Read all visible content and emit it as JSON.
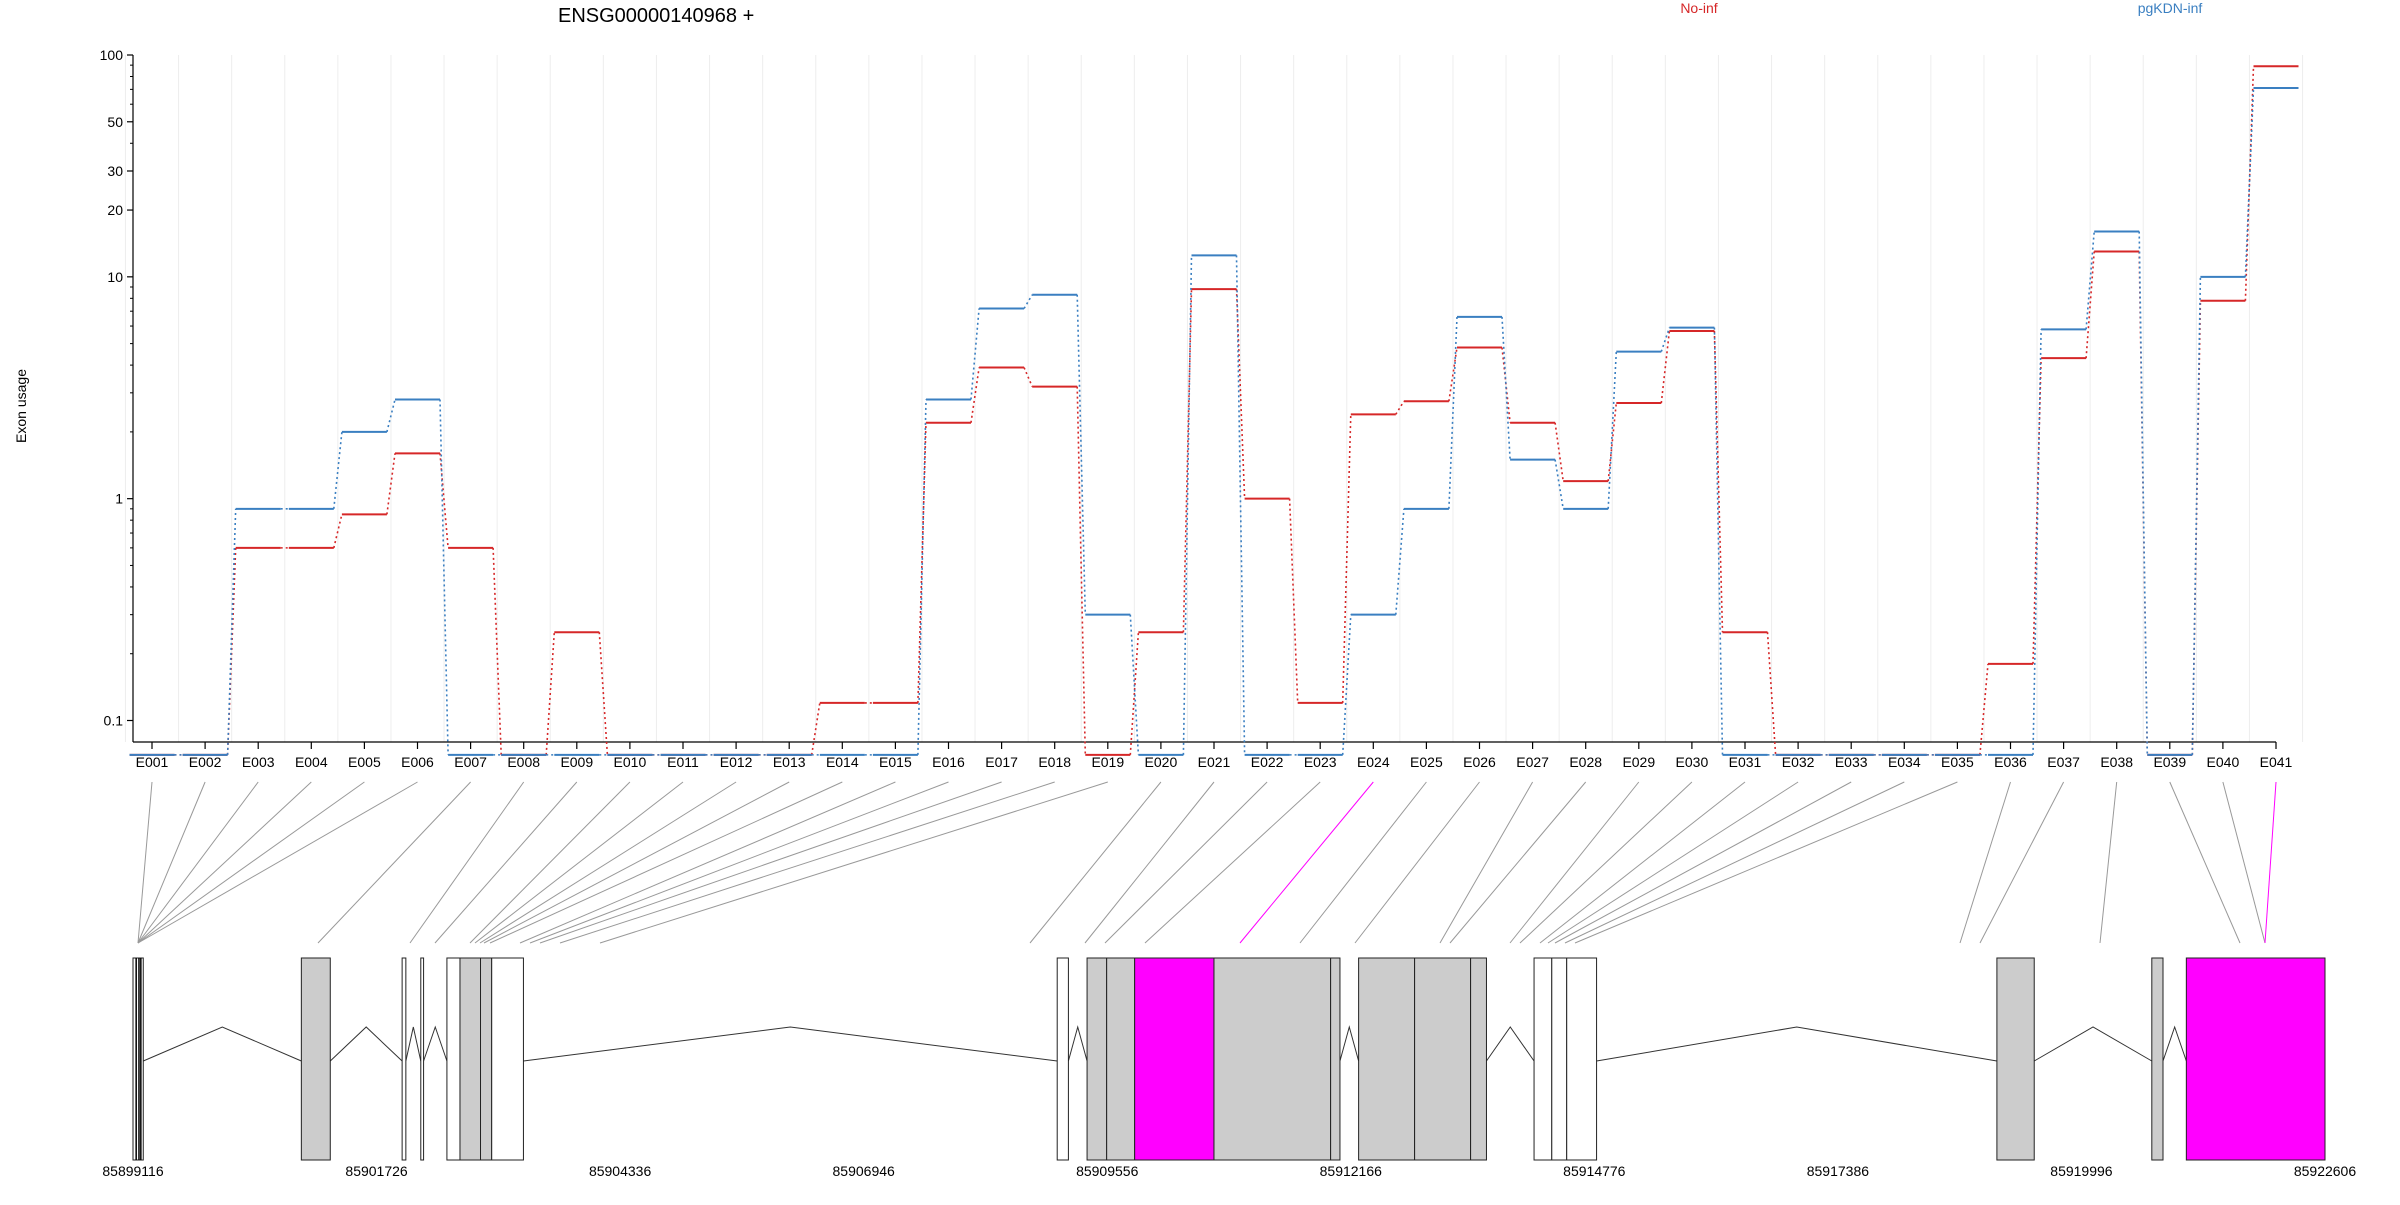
{
  "chart_data": [
    {
      "type": "line",
      "title": "ENSG00000140968 +",
      "xlabel": "",
      "ylabel": "Exon usage",
      "yscale": "log",
      "ylim": [
        0.08,
        100
      ],
      "yticks": [
        0.1,
        1,
        10,
        20,
        30,
        50,
        100
      ],
      "ytick_labels": [
        "0.1",
        "1",
        "10",
        "20",
        "30",
        "50",
        "100"
      ],
      "grid": "vertical, faint",
      "legend_position": "top-right",
      "colors": {
        "No-inf": "#d62728",
        "pgKDN-inf": "#3a7fc1",
        "highlight": "#ff00ff",
        "exon_box": "#cccccc"
      },
      "categories": [
        "E001",
        "E002",
        "E003",
        "E004",
        "E005",
        "E006",
        "E007",
        "E008",
        "E009",
        "E010",
        "E011",
        "E012",
        "E013",
        "E014",
        "E015",
        "E016",
        "E017",
        "E018",
        "E019",
        "E020",
        "E021",
        "E022",
        "E023",
        "E024",
        "E025",
        "E026",
        "E027",
        "E028",
        "E029",
        "E030",
        "E031",
        "E032",
        "E033",
        "E034",
        "E035",
        "E036",
        "E037",
        "E038",
        "E039",
        "E040",
        "E041"
      ],
      "series": [
        {
          "name": "No-inf",
          "color": "#d62728",
          "values": [
            0.07,
            0.07,
            0.6,
            0.6,
            0.85,
            1.6,
            0.6,
            0.07,
            0.25,
            0.07,
            0.07,
            0.07,
            0.07,
            0.12,
            0.12,
            2.2,
            3.9,
            3.2,
            0.07,
            0.25,
            8.8,
            1.0,
            0.12,
            2.4,
            2.75,
            4.8,
            2.2,
            1.2,
            2.7,
            5.7,
            0.25,
            0.07,
            0.07,
            0.07,
            0.07,
            0.18,
            4.3,
            13.0,
            0.07,
            7.8,
            89
          ]
        },
        {
          "name": "pgKDN-inf",
          "color": "#3a7fc1",
          "values": [
            0.07,
            0.07,
            0.9,
            0.9,
            2.0,
            2.8,
            0.07,
            0.07,
            0.07,
            0.07,
            0.07,
            0.07,
            0.07,
            0.07,
            0.07,
            2.8,
            7.2,
            8.3,
            0.3,
            0.07,
            12.5,
            0.07,
            0.07,
            0.3,
            0.9,
            6.6,
            1.5,
            0.9,
            4.6,
            5.9,
            0.07,
            0.07,
            0.07,
            0.07,
            0.07,
            0.07,
            5.8,
            16.0,
            0.07,
            10.0,
            71
          ]
        }
      ],
      "highlighted_exons": [
        "E024",
        "E041"
      ]
    },
    {
      "type": "gene-model",
      "genomic_range": [
        85899116,
        85922606
      ],
      "tick_labels": [
        "85899116",
        "85901726",
        "85904336",
        "85906946",
        "85909556",
        "85912166",
        "85914776",
        "85917386",
        "85919996",
        "85922606"
      ],
      "exon_blocks": [
        {
          "start": 85899116,
          "end": 85899226,
          "fill": "none"
        },
        {
          "start": 85900920,
          "end": 85901230,
          "fill": "grey"
        },
        {
          "start": 85902000,
          "end": 85902040,
          "fill": "none"
        },
        {
          "start": 85902200,
          "end": 85902230,
          "fill": "none"
        },
        {
          "start": 85902480,
          "end": 85902620,
          "fill": "none"
        },
        {
          "start": 85902620,
          "end": 85902840,
          "fill": "grey"
        },
        {
          "start": 85902840,
          "end": 85902960,
          "fill": "grey"
        },
        {
          "start": 85902960,
          "end": 85903300,
          "fill": "none"
        },
        {
          "start": 85909020,
          "end": 85909140,
          "fill": "none"
        },
        {
          "start": 85909340,
          "end": 85909550,
          "fill": "grey"
        },
        {
          "start": 85909550,
          "end": 85909850,
          "fill": "grey"
        },
        {
          "start": 85909850,
          "end": 85910700,
          "fill": "highlight"
        },
        {
          "start": 85910700,
          "end": 85911950,
          "fill": "grey"
        },
        {
          "start": 85911950,
          "end": 85912050,
          "fill": "grey"
        },
        {
          "start": 85912250,
          "end": 85912850,
          "fill": "grey"
        },
        {
          "start": 85912850,
          "end": 85913450,
          "fill": "grey"
        },
        {
          "start": 85913450,
          "end": 85913620,
          "fill": "grey"
        },
        {
          "start": 85914130,
          "end": 85914320,
          "fill": "none"
        },
        {
          "start": 85914320,
          "end": 85914480,
          "fill": "none"
        },
        {
          "start": 85914480,
          "end": 85914800,
          "fill": "none"
        },
        {
          "start": 85919090,
          "end": 85919490,
          "fill": "grey"
        },
        {
          "start": 85920750,
          "end": 85920870,
          "fill": "grey"
        },
        {
          "start": 85921120,
          "end": 85922606,
          "fill": "highlight"
        }
      ]
    }
  ],
  "legend": [
    {
      "label": "No-inf",
      "color": "#d62728"
    },
    {
      "label": "pgKDN-inf",
      "color": "#3a7fc1"
    }
  ]
}
